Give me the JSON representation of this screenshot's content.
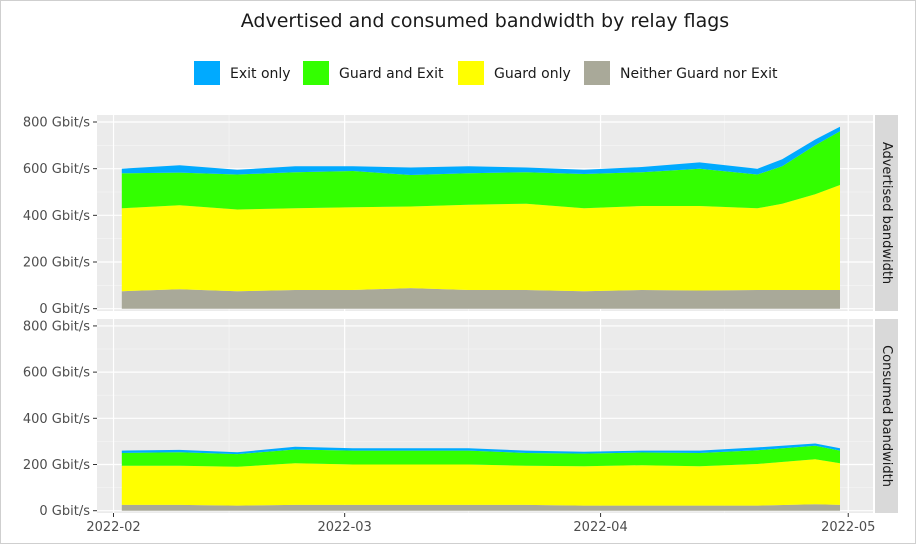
{
  "chart_data": {
    "type": "area",
    "stacked": true,
    "title": "Advertised and consumed bandwidth by relay flags",
    "legend": {
      "position": "top",
      "entries": [
        "Exit only",
        "Guard and Exit",
        "Guard only",
        "Neither Guard nor Exit"
      ]
    },
    "x_axis": {
      "range": [
        "2022-01-30",
        "2022-05-04"
      ],
      "ticks": [
        "2022-02-01",
        "2022-03-01",
        "2022-04-01",
        "2022-05-01"
      ],
      "tick_labels": [
        "2022-02",
        "2022-03",
        "2022-04",
        "2022-05"
      ]
    },
    "y_axis": {
      "range": [
        -10,
        830
      ],
      "ticks": [
        0,
        200,
        400,
        600,
        800
      ],
      "tick_labels": [
        "0 Gbit/s",
        "200 Gbit/s",
        "400 Gbit/s",
        "600 Gbit/s",
        "800 Gbit/s"
      ]
    },
    "colors": {
      "Exit only": "#00aaff",
      "Guard and Exit": "#33ff00",
      "Guard only": "#ffff00",
      "Neither Guard nor Exit": "#a9a999"
    },
    "panels": [
      {
        "label": "Advertised bandwidth",
        "x": [
          "2022-02-02",
          "2022-02-09",
          "2022-02-16",
          "2022-02-23",
          "2022-03-02",
          "2022-03-09",
          "2022-03-16",
          "2022-03-23",
          "2022-03-30",
          "2022-04-06",
          "2022-04-13",
          "2022-04-20",
          "2022-04-23",
          "2022-04-27",
          "2022-04-30"
        ],
        "series": [
          {
            "name": "Neither Guard nor Exit",
            "values": [
              75,
              83,
              75,
              80,
              80,
              88,
              80,
              80,
              75,
              80,
              78,
              80,
              80,
              80,
              80
            ]
          },
          {
            "name": "Guard only",
            "values": [
              355,
              360,
              350,
              350,
              355,
              350,
              365,
              370,
              355,
              360,
              362,
              350,
              370,
              410,
              450
            ]
          },
          {
            "name": "Guard and Exit",
            "values": [
              150,
              140,
              150,
              155,
              155,
              135,
              135,
              135,
              147,
              145,
              160,
              145,
              160,
              210,
              230
            ]
          },
          {
            "name": "Exit only",
            "values": [
              20,
              32,
              20,
              25,
              20,
              32,
              30,
              20,
              18,
              22,
              27,
              25,
              30,
              25,
              20
            ]
          }
        ]
      },
      {
        "label": "Consumed bandwidth",
        "x": [
          "2022-02-02",
          "2022-02-09",
          "2022-02-16",
          "2022-02-23",
          "2022-03-02",
          "2022-03-09",
          "2022-03-16",
          "2022-03-23",
          "2022-03-30",
          "2022-04-06",
          "2022-04-13",
          "2022-04-20",
          "2022-04-27",
          "2022-04-30"
        ],
        "series": [
          {
            "name": "Neither Guard nor Exit",
            "values": [
              25,
              25,
              22,
              25,
              25,
              25,
              25,
              25,
              22,
              22,
              22,
              22,
              28,
              25
            ]
          },
          {
            "name": "Guard only",
            "values": [
              170,
              170,
              168,
              180,
              175,
              175,
              175,
              170,
              170,
              175,
              170,
              180,
              195,
              180
            ]
          },
          {
            "name": "Guard and Exit",
            "values": [
              55,
              58,
              55,
              60,
              60,
              60,
              60,
              55,
              55,
              55,
              58,
              60,
              58,
              55
            ]
          },
          {
            "name": "Exit only",
            "values": [
              10,
              10,
              8,
              12,
              10,
              10,
              10,
              10,
              8,
              8,
              10,
              12,
              10,
              10
            ]
          }
        ]
      }
    ]
  }
}
